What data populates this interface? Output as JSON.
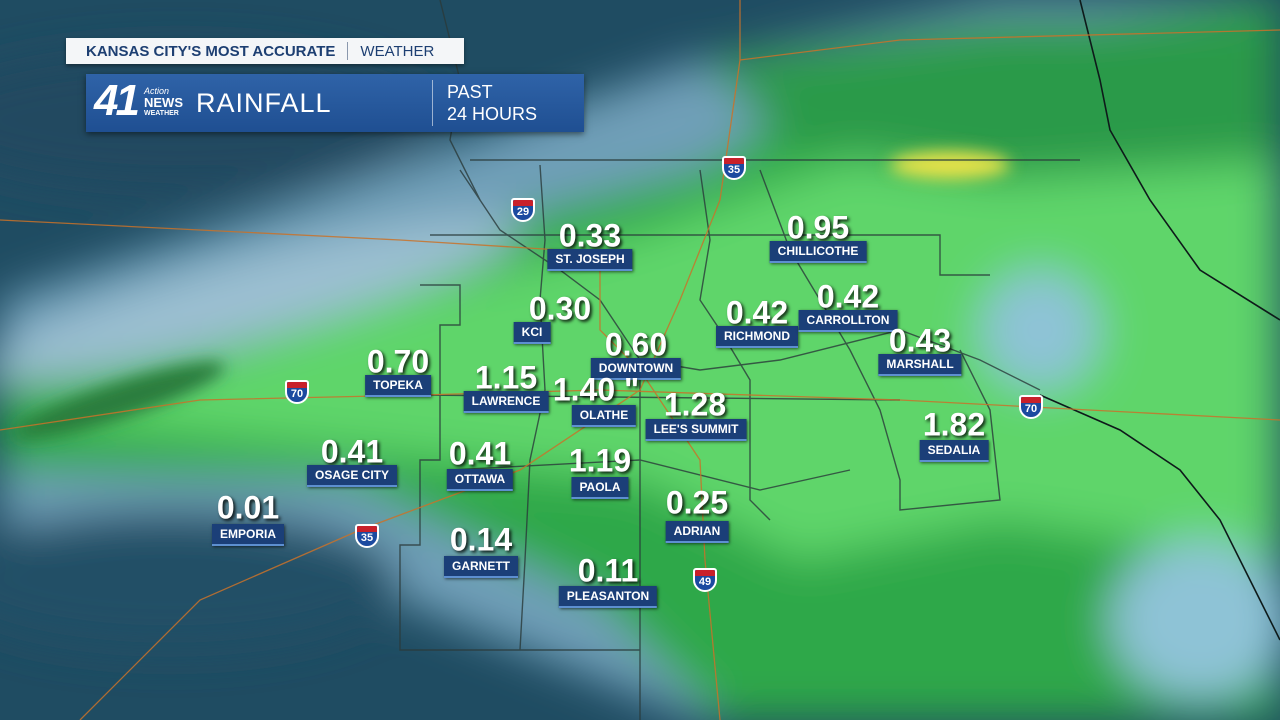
{
  "header": {
    "tagline": "KANSAS CITY'S MOST ACCURATE",
    "section": "WEATHER",
    "logo_number": "41",
    "logo_line1": "Action",
    "logo_line2": "NEWS",
    "logo_line3": "WEATHER",
    "title": "RAINFALL",
    "period_line1": "PAST",
    "period_line2": "24 HOURS"
  },
  "cities": [
    {
      "name": "ST. JOSEPH",
      "amount": "0.33"
    },
    {
      "name": "KCI",
      "amount": "0.30"
    },
    {
      "name": "CHILLICOTHE",
      "amount": "0.95"
    },
    {
      "name": "DOWNTOWN",
      "amount": "0.60"
    },
    {
      "name": "RICHMOND",
      "amount": "0.42"
    },
    {
      "name": "CARROLLTON",
      "amount": "0.42"
    },
    {
      "name": "MARSHALL",
      "amount": "0.43"
    },
    {
      "name": "TOPEKA",
      "amount": "0.70"
    },
    {
      "name": "LAWRENCE",
      "amount": "1.15"
    },
    {
      "name": "OLATHE",
      "amount": "1.40 \""
    },
    {
      "name": "LEE'S SUMMIT",
      "amount": "1.28"
    },
    {
      "name": "SEDALIA",
      "amount": "1.82"
    },
    {
      "name": "OSAGE CITY",
      "amount": "0.41"
    },
    {
      "name": "OTTAWA",
      "amount": "0.41"
    },
    {
      "name": "PAOLA",
      "amount": "1.19"
    },
    {
      "name": "ADRIAN",
      "amount": "0.25"
    },
    {
      "name": "EMPORIA",
      "amount": "0.01"
    },
    {
      "name": "GARNETT",
      "amount": "0.14"
    },
    {
      "name": "PLEASANTON",
      "amount": "0.11"
    }
  ],
  "highways": [
    "29",
    "35",
    "70",
    "70",
    "35",
    "49"
  ]
}
